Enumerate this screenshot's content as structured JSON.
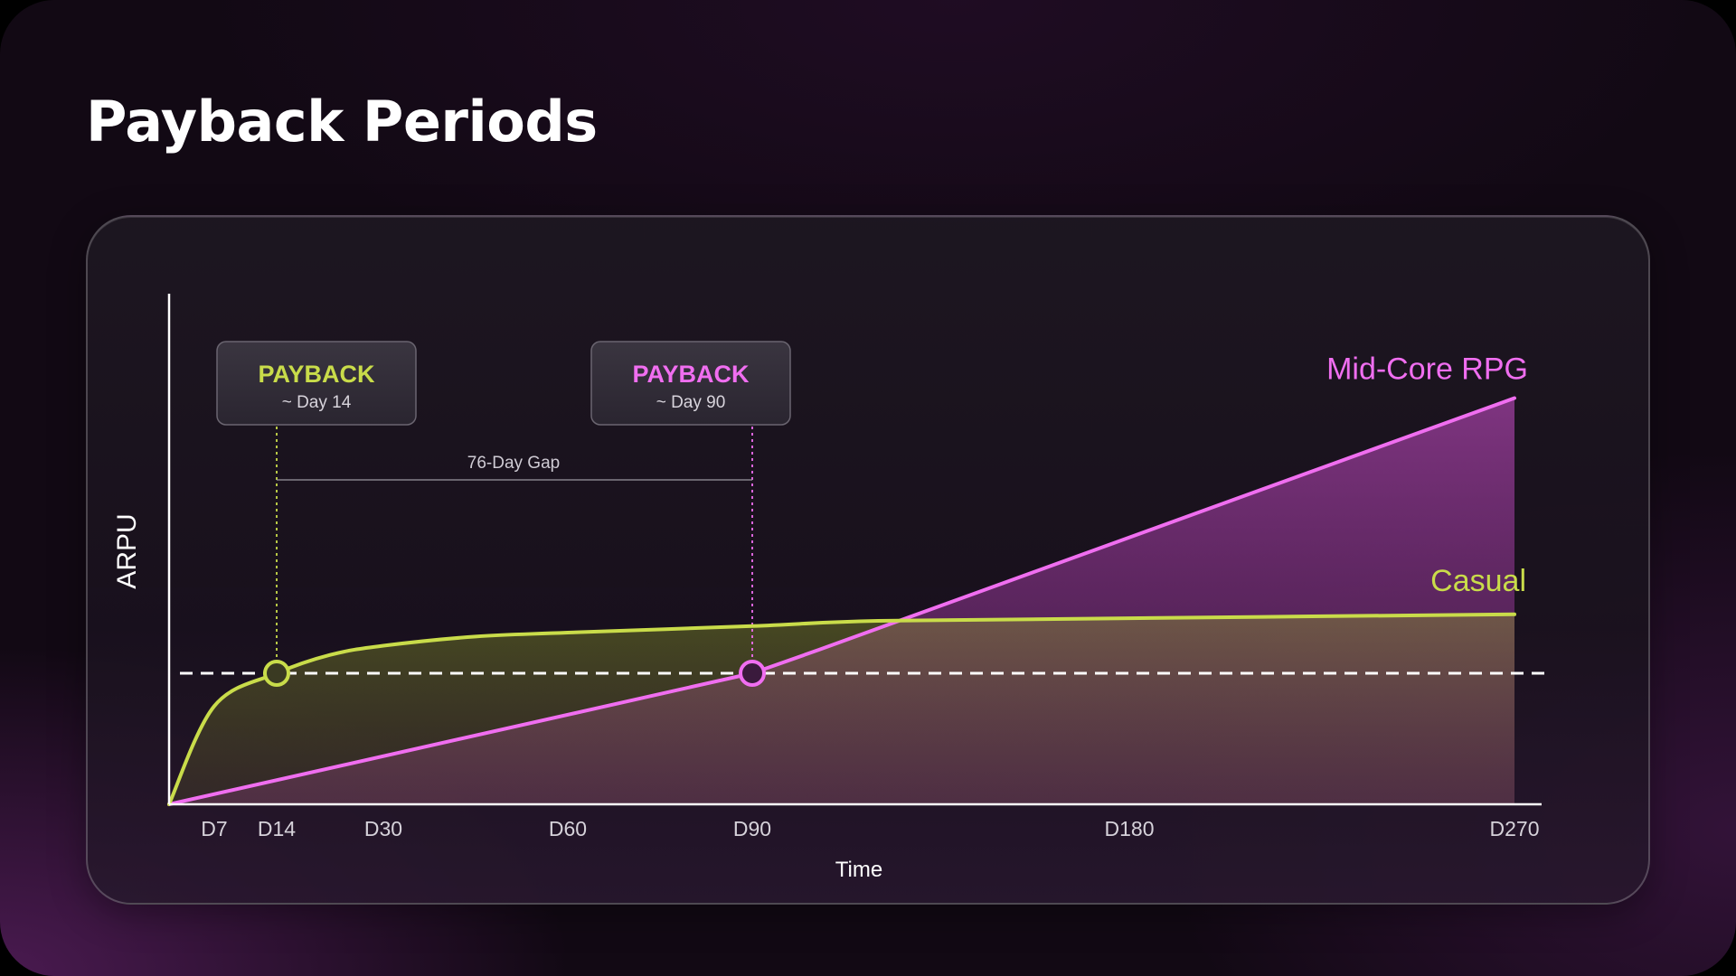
{
  "title": "Payback Periods",
  "colors": {
    "casual": "#c9dc4a",
    "midcore": "#f06ef0",
    "axis": "#ffffff",
    "baseline": "#ffffff"
  },
  "chart_data": {
    "type": "line",
    "xlabel": "Time",
    "ylabel": "ARPU",
    "x_tick_labels": [
      {
        "label": "D7",
        "day": 7
      },
      {
        "label": "D14",
        "day": 14
      },
      {
        "label": "D30",
        "day": 30
      },
      {
        "label": "D60",
        "day": 60
      },
      {
        "label": "D90",
        "day": 90
      },
      {
        "label": "D180",
        "day": 180
      },
      {
        "label": "D270",
        "day": 270
      }
    ],
    "payback_level": 1,
    "series": [
      {
        "name": "Casual",
        "color_key": "casual",
        "points": [
          {
            "day": 0,
            "arpu": 0
          },
          {
            "day": 7,
            "arpu": 0.75
          },
          {
            "day": 14,
            "arpu": 1
          },
          {
            "day": 22,
            "arpu": 1.14
          },
          {
            "day": 30,
            "arpu": 1.21
          },
          {
            "day": 45,
            "arpu": 1.28
          },
          {
            "day": 60,
            "arpu": 1.31
          },
          {
            "day": 90,
            "arpu": 1.36
          },
          {
            "day": 120,
            "arpu": 1.4
          },
          {
            "day": 180,
            "arpu": 1.42
          },
          {
            "day": 270,
            "arpu": 1.45
          }
        ]
      },
      {
        "name": "Mid-Core RPG",
        "color_key": "midcore",
        "points": [
          {
            "day": 0,
            "arpu": 0
          },
          {
            "day": 90,
            "arpu": 1
          },
          {
            "day": 106,
            "arpu": 1.18
          },
          {
            "day": 270,
            "arpu": 3.1
          }
        ]
      }
    ],
    "annotations": [
      {
        "title": "PAYBACK",
        "subtitle": "~ Day 14",
        "day": 14,
        "color_key": "casual"
      },
      {
        "title": "PAYBACK",
        "subtitle": "~ Day 90",
        "day": 90,
        "color_key": "midcore"
      }
    ],
    "gap_label": "76-Day Gap"
  }
}
